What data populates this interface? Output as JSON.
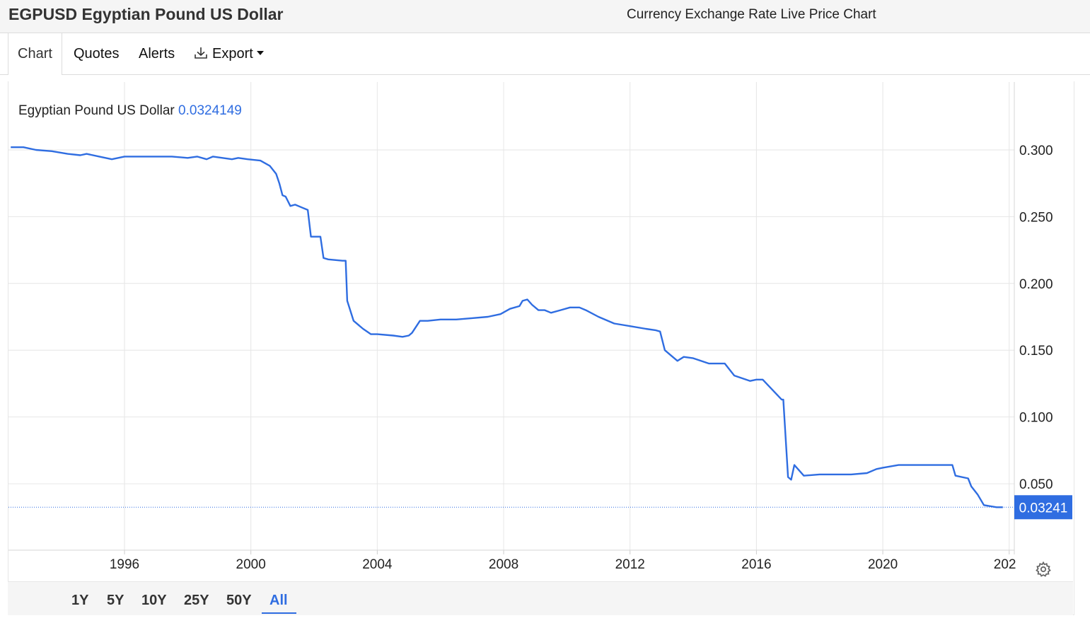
{
  "header": {
    "title": "EGPUSD Egyptian Pound US Dollar",
    "subtitle": "Currency Exchange Rate Live Price Chart"
  },
  "tabs": [
    {
      "label": "Chart",
      "active": true
    },
    {
      "label": "Quotes",
      "active": false
    },
    {
      "label": "Alerts",
      "active": false
    },
    {
      "label": "Export",
      "active": false,
      "icon": "download-icon",
      "dropdown": true
    }
  ],
  "legend": {
    "name": "Egyptian Pound US Dollar",
    "value": "0.0324149"
  },
  "current_price_label": "0.03241",
  "ranges": [
    {
      "label": "1Y",
      "active": false
    },
    {
      "label": "5Y",
      "active": false
    },
    {
      "label": "10Y",
      "active": false
    },
    {
      "label": "25Y",
      "active": false
    },
    {
      "label": "50Y",
      "active": false
    },
    {
      "label": "All",
      "active": true
    }
  ],
  "colors": {
    "line": "#2f6de1",
    "grid": "#e6e6e6",
    "price_tag_bg": "#2f6de1"
  },
  "settings_icon": "gear-icon",
  "chart_data": {
    "type": "line",
    "title": "Egyptian Pound US Dollar",
    "xlabel": "",
    "ylabel": "",
    "x_ticks": [
      "1996",
      "2000",
      "2004",
      "2008",
      "2012",
      "2016",
      "2020",
      "202"
    ],
    "y_ticks": [
      "0.300",
      "0.250",
      "0.200",
      "0.150",
      "0.100",
      "0.050"
    ],
    "xlim": [
      1992.35,
      2024.2
    ],
    "ylim": [
      0.0,
      0.35
    ],
    "grid": true,
    "legend": "top-left",
    "last_value": 0.0324149,
    "series": [
      {
        "name": "Egyptian Pound US Dollar",
        "x": [
          1992.4,
          1992.8,
          1993.2,
          1993.7,
          1994.2,
          1994.6,
          1994.8,
          1995.2,
          1995.6,
          1996.0,
          1996.5,
          1997.0,
          1997.5,
          1998.0,
          1998.3,
          1998.6,
          1998.8,
          1999.1,
          1999.4,
          1999.6,
          1999.9,
          2000.3,
          2000.6,
          2000.8,
          2000.9,
          2001.0,
          2001.1,
          2001.25,
          2001.4,
          2001.6,
          2001.8,
          2001.9,
          2002.2,
          2002.3,
          2002.45,
          2002.9,
          2003.0,
          2003.05,
          2003.25,
          2003.55,
          2003.8,
          2004.0,
          2004.5,
          2004.8,
          2005.0,
          2005.1,
          2005.35,
          2005.6,
          2006.0,
          2006.5,
          2007.0,
          2007.5,
          2007.9,
          2008.2,
          2008.5,
          2008.6,
          2008.75,
          2008.9,
          2009.1,
          2009.3,
          2009.5,
          2009.8,
          2010.1,
          2010.4,
          2010.6,
          2011.0,
          2011.5,
          2012.0,
          2012.5,
          2012.8,
          2012.95,
          2013.1,
          2013.3,
          2013.5,
          2013.7,
          2014.0,
          2014.5,
          2015.0,
          2015.3,
          2015.8,
          2016.0,
          2016.2,
          2016.8,
          2016.85,
          2017.0,
          2017.1,
          2017.2,
          2017.5,
          2018.0,
          2018.5,
          2019.0,
          2019.5,
          2019.8,
          2020.0,
          2020.5,
          2021.0,
          2021.5,
          2022.0,
          2022.2,
          2022.3,
          2022.7,
          2022.8,
          2023.0,
          2023.2,
          2023.6,
          2023.8
        ],
        "values": [
          0.302,
          0.302,
          0.3,
          0.299,
          0.297,
          0.296,
          0.297,
          0.295,
          0.293,
          0.295,
          0.295,
          0.295,
          0.295,
          0.294,
          0.295,
          0.293,
          0.295,
          0.294,
          0.293,
          0.294,
          0.293,
          0.292,
          0.288,
          0.282,
          0.275,
          0.266,
          0.265,
          0.258,
          0.259,
          0.257,
          0.255,
          0.235,
          0.235,
          0.219,
          0.218,
          0.217,
          0.217,
          0.187,
          0.172,
          0.166,
          0.162,
          0.162,
          0.161,
          0.16,
          0.161,
          0.163,
          0.172,
          0.172,
          0.173,
          0.173,
          0.174,
          0.175,
          0.177,
          0.181,
          0.183,
          0.187,
          0.188,
          0.184,
          0.18,
          0.18,
          0.178,
          0.18,
          0.182,
          0.182,
          0.18,
          0.175,
          0.17,
          0.168,
          0.166,
          0.165,
          0.164,
          0.15,
          0.146,
          0.142,
          0.145,
          0.144,
          0.14,
          0.14,
          0.131,
          0.127,
          0.128,
          0.128,
          0.113,
          0.113,
          0.055,
          0.053,
          0.064,
          0.056,
          0.057,
          0.057,
          0.057,
          0.058,
          0.061,
          0.062,
          0.064,
          0.064,
          0.064,
          0.064,
          0.064,
          0.056,
          0.054,
          0.048,
          0.042,
          0.034,
          0.0324,
          0.0324
        ]
      }
    ]
  }
}
